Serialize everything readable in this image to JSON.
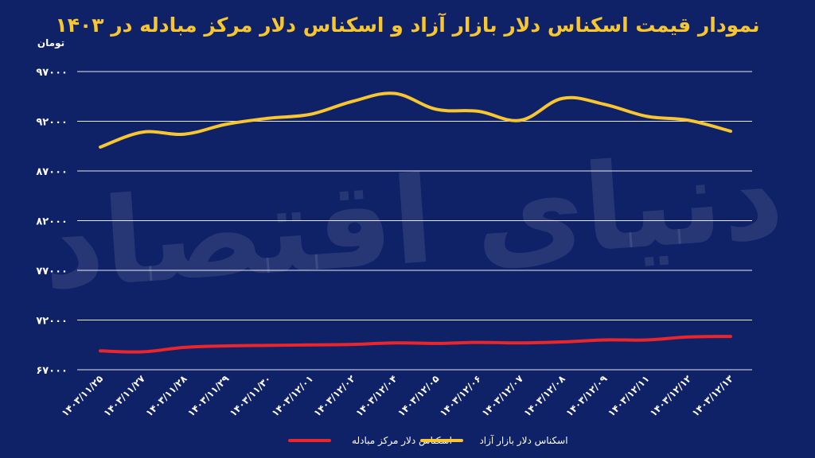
{
  "chart_data": {
    "type": "line",
    "title": "نمودار قیمت اسکناس دلار بازار آزاد و اسکناس دلار مرکز مبادله در ۱۴۰۳",
    "ylabel": "تومان",
    "watermark": "دنیای اقتصاد",
    "ylim": [
      67000,
      97000
    ],
    "ytick_labels": [
      "۹۷۰۰۰",
      "۹۲۰۰۰",
      "۸۷۰۰۰",
      "۸۲۰۰۰",
      "۷۷۰۰۰",
      "۷۲۰۰۰",
      "۶۷۰۰۰"
    ],
    "ytick_values": [
      97000,
      92000,
      87000,
      82000,
      77000,
      72000,
      67000
    ],
    "x": [
      "۱۴۰۳/۱۱/۲۵",
      "۱۴۰۳/۱۱/۲۷",
      "۱۴۰۳/۱۱/۲۸",
      "۱۴۰۳/۱۱/۲۹",
      "۱۴۰۳/۱۱/۳۰",
      "۱۴۰۳/۱۲/۰۱",
      "۱۴۰۳/۱۲/۰۲",
      "۱۴۰۳/۱۲/۰۴",
      "۱۴۰۳/۱۲/۰۵",
      "۱۴۰۳/۱۲/۰۶",
      "۱۴۰۳/۱۲/۰۷",
      "۱۴۰۳/۱۲/۰۸",
      "۱۴۰۳/۱۲/۰۹",
      "۱۴۰۳/۱۲/۱۱",
      "۱۴۰۳/۱۲/۱۲",
      "۱۴۰۳/۱۲/۱۳"
    ],
    "series": [
      {
        "name": "اسکناس دلار مرکز مبادله",
        "color": "#e8262c",
        "values": [
          68900,
          68800,
          69250,
          69400,
          69450,
          69500,
          69550,
          69700,
          69650,
          69750,
          69700,
          69800,
          70000,
          70000,
          70300,
          70350
        ]
      },
      {
        "name": "اسکناس دلار بازار آزاد",
        "color": "#f7c630",
        "values": [
          89400,
          90900,
          90700,
          91700,
          92300,
          92700,
          94000,
          94800,
          93200,
          93000,
          92100,
          94300,
          93700,
          92500,
          92100,
          91000
        ]
      }
    ],
    "legend_position": "bottom",
    "grid": true
  }
}
